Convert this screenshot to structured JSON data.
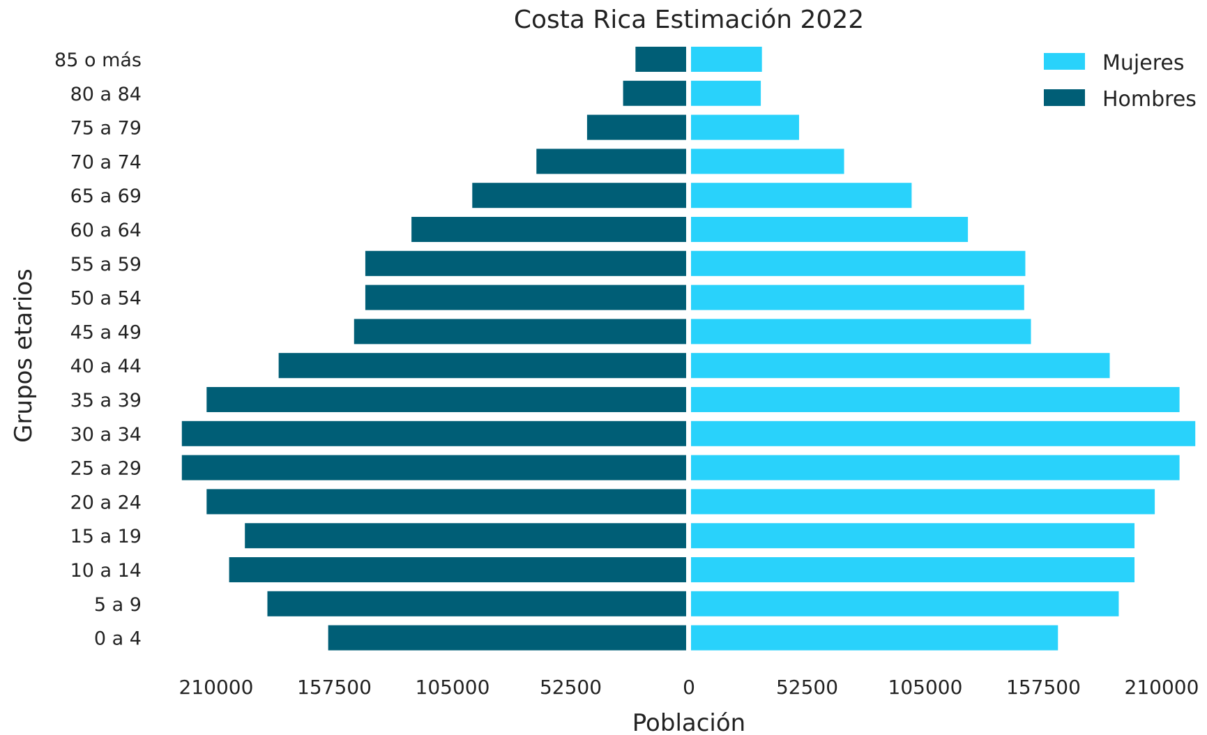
{
  "chart_data": {
    "type": "bar",
    "orientation": "horizontal",
    "layout": "population-pyramid",
    "title": "Costa Rica Estimación 2022",
    "xlabel": "Población",
    "ylabel": "Grupos etarios",
    "categories": [
      "0 a 4",
      "5 a 9",
      "10 a 14",
      "15 a 19",
      "20 a 24",
      "25 a 29",
      "30 a 34",
      "35 a 39",
      "40 a 44",
      "45 a 49",
      "50 a 54",
      "55 a 59",
      "60 a 64",
      "65 a 69",
      "70 a 74",
      "75 a 79",
      "80 a 84",
      "85 o más"
    ],
    "series": [
      {
        "name": "Mujeres",
        "color": "#29d2fb",
        "side": "right",
        "values": [
          163000,
          190000,
          197000,
          197000,
          206000,
          217000,
          224000,
          217000,
          186000,
          151000,
          148000,
          148500,
          123000,
          98000,
          68000,
          48000,
          31000,
          31500
        ]
      },
      {
        "name": "Hombres",
        "color": "#005e76",
        "side": "left",
        "values": [
          159000,
          186000,
          203000,
          196000,
          213000,
          224000,
          224000,
          213000,
          181000,
          147500,
          142500,
          142500,
          122000,
          95000,
          66500,
          44000,
          28000,
          22500
        ]
      }
    ],
    "x_ticks": [
      "210000",
      "157500",
      "105000",
      "52500",
      "0",
      "52500",
      "105000",
      "157500",
      "210000"
    ],
    "xlim": [
      -210000,
      210000
    ],
    "legend": {
      "position": "top-right",
      "order": [
        "Mujeres",
        "Hombres"
      ]
    },
    "grid": false
  }
}
